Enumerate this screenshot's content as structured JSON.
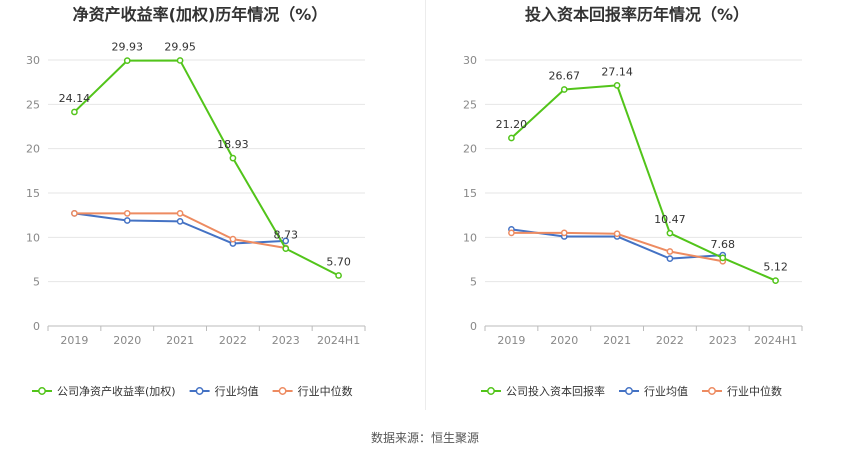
{
  "footer": {
    "source": "数据来源：恒生聚源"
  },
  "colors": {
    "company": "#52c41a",
    "avg": "#4472c4",
    "median": "#ed8b61",
    "grid": "#e6e6e6",
    "axis": "#bbbbbb",
    "text": "#666666",
    "title": "#333333"
  },
  "chart_data": [
    {
      "type": "line",
      "title": "净资产收益率(加权)历年情况（%）",
      "categories": [
        "2019",
        "2020",
        "2021",
        "2022",
        "2023",
        "2024H1"
      ],
      "ylim": [
        0,
        30
      ],
      "yticks": [
        "0",
        "5",
        "10",
        "15",
        "20",
        "25",
        "30"
      ],
      "grid": true,
      "legend_position": "bottom-left",
      "series": [
        {
          "name": "公司净资产收益率(加权)",
          "role": "company",
          "values": [
            24.14,
            29.93,
            29.95,
            18.93,
            8.73,
            5.7
          ],
          "labels": [
            "24.14",
            "29.93",
            "29.95",
            "18.93",
            "8.73",
            "5.70"
          ]
        },
        {
          "name": "行业均值",
          "role": "avg",
          "values": [
            12.7,
            11.9,
            11.8,
            9.3,
            9.6,
            null
          ]
        },
        {
          "name": "行业中位数",
          "role": "median",
          "values": [
            12.7,
            12.7,
            12.7,
            9.8,
            8.8,
            null
          ]
        }
      ]
    },
    {
      "type": "line",
      "title": "投入资本回报率历年情况（%）",
      "categories": [
        "2019",
        "2020",
        "2021",
        "2022",
        "2023",
        "2024H1"
      ],
      "ylim": [
        0,
        30
      ],
      "yticks": [
        "0",
        "5",
        "10",
        "15",
        "20",
        "25",
        "30"
      ],
      "grid": true,
      "legend_position": "bottom-left",
      "series": [
        {
          "name": "公司投入资本回报率",
          "role": "company",
          "values": [
            21.2,
            26.67,
            27.14,
            10.47,
            7.68,
            5.12
          ],
          "labels": [
            "21.20",
            "26.67",
            "27.14",
            "10.47",
            "7.68",
            "5.12"
          ]
        },
        {
          "name": "行业均值",
          "role": "avg",
          "values": [
            10.9,
            10.1,
            10.1,
            7.6,
            8.0,
            null
          ]
        },
        {
          "name": "行业中位数",
          "role": "median",
          "values": [
            10.5,
            10.5,
            10.4,
            8.4,
            7.3,
            null
          ]
        }
      ]
    }
  ]
}
